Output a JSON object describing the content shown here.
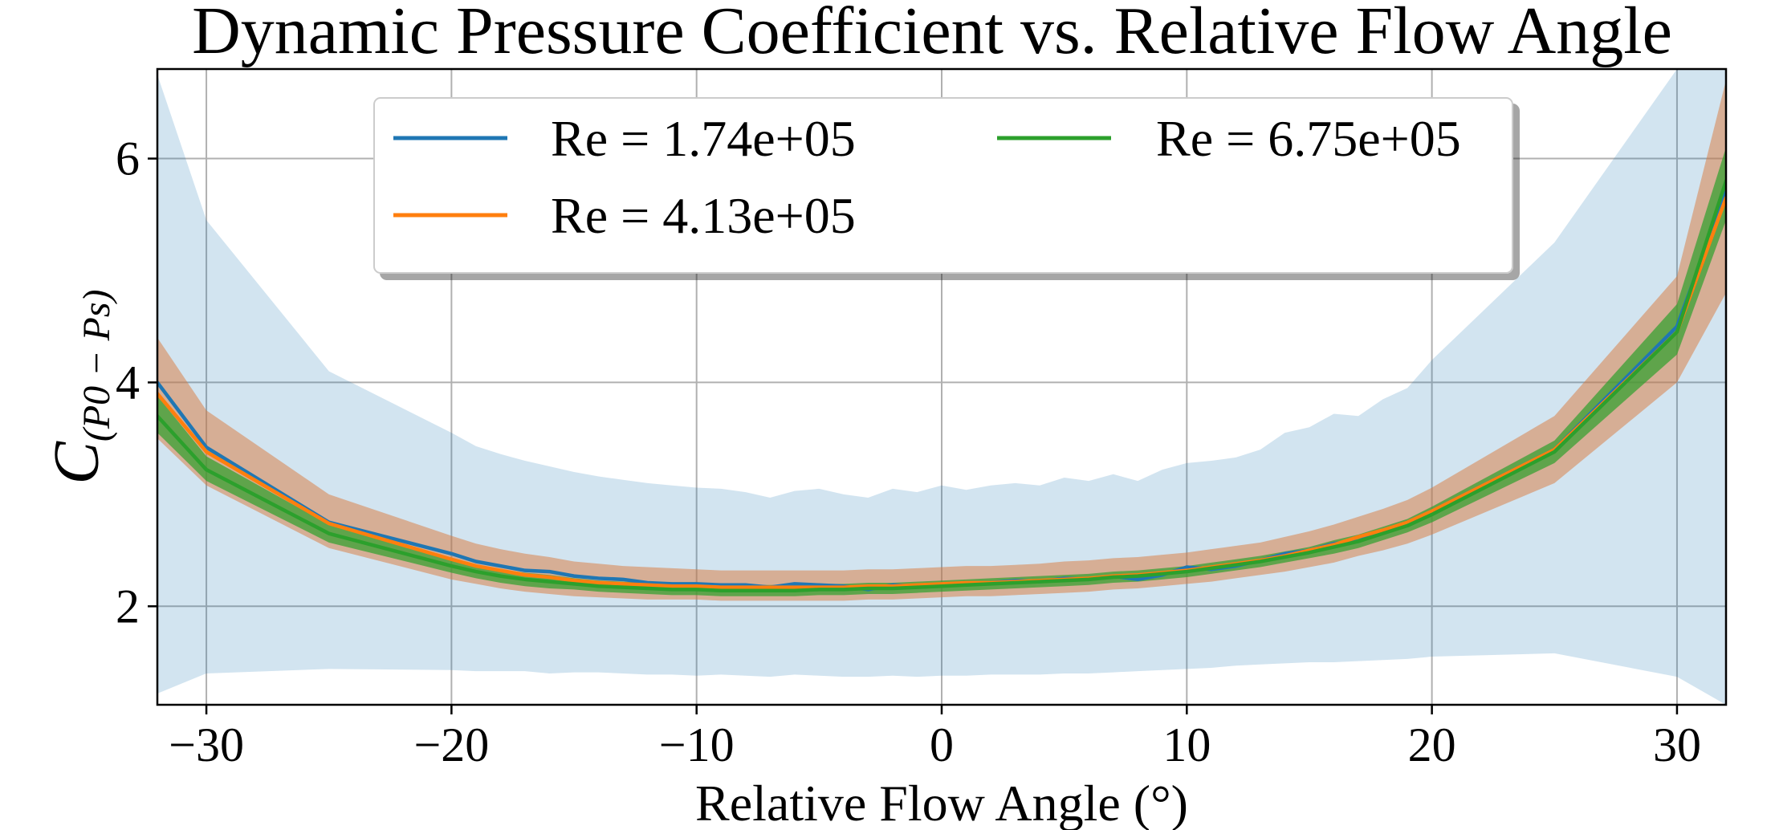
{
  "chart_data": {
    "type": "line",
    "title": "Dynamic Pressure Coefficient vs. Relative Flow Angle",
    "xlabel": "Relative Flow Angle (°)",
    "ylabel": "C(P0 − Ps)",
    "ylabel_main": "C",
    "ylabel_sub": "(P0 − Ps)",
    "xlim": [
      -32,
      32
    ],
    "ylim": [
      1.12,
      6.8
    ],
    "xticks": [
      -30,
      -20,
      -10,
      0,
      10,
      20,
      30
    ],
    "xtick_labels": [
      "−30",
      "−20",
      "−10",
      "0",
      "10",
      "20",
      "30"
    ],
    "yticks": [
      2,
      4,
      6
    ],
    "ytick_labels": [
      "2",
      "4",
      "6"
    ],
    "grid": true,
    "legend_position": "top-center",
    "legend_columns": 2,
    "series": [
      {
        "name": "Re = 1.74e+05",
        "color": "#1f77b4",
        "band_color": "#1f77b4",
        "band_opacity": 0.2,
        "x": [
          -32,
          -30,
          -25,
          -20,
          -19,
          -18,
          -17,
          -16,
          -15,
          -14,
          -13,
          -12,
          -11,
          -10,
          -9,
          -8,
          -7,
          -6,
          -5,
          -4,
          -3,
          -2,
          -1,
          0,
          1,
          2,
          3,
          4,
          5,
          6,
          7,
          8,
          9,
          10,
          11,
          12,
          13,
          14,
          15,
          16,
          17,
          18,
          19,
          20,
          25,
          30,
          32
        ],
        "y": [
          4.0,
          3.42,
          2.75,
          2.47,
          2.4,
          2.36,
          2.32,
          2.31,
          2.27,
          2.25,
          2.24,
          2.21,
          2.2,
          2.2,
          2.19,
          2.19,
          2.17,
          2.2,
          2.19,
          2.18,
          2.15,
          2.19,
          2.18,
          2.2,
          2.19,
          2.21,
          2.23,
          2.22,
          2.25,
          2.24,
          2.27,
          2.24,
          2.28,
          2.35,
          2.33,
          2.36,
          2.41,
          2.47,
          2.5,
          2.56,
          2.58,
          2.68,
          2.75,
          2.85,
          3.4,
          4.5,
          5.7
        ],
        "lower": [
          1.22,
          1.4,
          1.44,
          1.43,
          1.42,
          1.42,
          1.42,
          1.4,
          1.41,
          1.41,
          1.4,
          1.39,
          1.39,
          1.38,
          1.39,
          1.38,
          1.37,
          1.39,
          1.38,
          1.37,
          1.37,
          1.38,
          1.37,
          1.38,
          1.38,
          1.39,
          1.39,
          1.39,
          1.4,
          1.4,
          1.41,
          1.42,
          1.43,
          1.44,
          1.45,
          1.47,
          1.48,
          1.49,
          1.5,
          1.5,
          1.51,
          1.52,
          1.53,
          1.55,
          1.58,
          1.37,
          1.12
        ],
        "upper": [
          6.75,
          5.45,
          4.1,
          3.55,
          3.43,
          3.36,
          3.3,
          3.25,
          3.2,
          3.16,
          3.13,
          3.1,
          3.08,
          3.06,
          3.05,
          3.02,
          2.97,
          3.03,
          3.05,
          3.0,
          2.97,
          3.05,
          3.02,
          3.08,
          3.04,
          3.08,
          3.1,
          3.08,
          3.15,
          3.12,
          3.18,
          3.12,
          3.22,
          3.28,
          3.3,
          3.33,
          3.4,
          3.55,
          3.6,
          3.72,
          3.7,
          3.85,
          3.95,
          4.2,
          5.25,
          6.8,
          6.8
        ]
      },
      {
        "name": "Re = 4.13e+05",
        "color": "#ff7f0e",
        "band_color": "#d9773a",
        "band_opacity": 0.5,
        "x": [
          -32,
          -30,
          -25,
          -20,
          -19,
          -18,
          -17,
          -16,
          -15,
          -14,
          -13,
          -12,
          -11,
          -10,
          -9,
          -8,
          -7,
          -6,
          -5,
          -4,
          -3,
          -2,
          -1,
          0,
          1,
          2,
          3,
          4,
          5,
          6,
          7,
          8,
          9,
          10,
          11,
          12,
          13,
          14,
          15,
          16,
          17,
          18,
          19,
          20,
          25,
          30,
          32
        ],
        "y": [
          3.9,
          3.38,
          2.74,
          2.42,
          2.36,
          2.32,
          2.28,
          2.26,
          2.23,
          2.21,
          2.2,
          2.19,
          2.18,
          2.18,
          2.17,
          2.17,
          2.17,
          2.17,
          2.17,
          2.17,
          2.18,
          2.18,
          2.19,
          2.2,
          2.21,
          2.21,
          2.22,
          2.23,
          2.24,
          2.25,
          2.27,
          2.28,
          2.3,
          2.32,
          2.35,
          2.38,
          2.41,
          2.45,
          2.5,
          2.55,
          2.62,
          2.68,
          2.75,
          2.85,
          3.4,
          4.45,
          5.65
        ],
        "lower": [
          3.5,
          3.08,
          2.52,
          2.24,
          2.2,
          2.16,
          2.13,
          2.11,
          2.09,
          2.08,
          2.07,
          2.06,
          2.06,
          2.06,
          2.05,
          2.05,
          2.05,
          2.05,
          2.05,
          2.05,
          2.06,
          2.06,
          2.07,
          2.08,
          2.09,
          2.09,
          2.1,
          2.11,
          2.12,
          2.13,
          2.15,
          2.16,
          2.18,
          2.2,
          2.22,
          2.25,
          2.28,
          2.31,
          2.35,
          2.39,
          2.45,
          2.5,
          2.56,
          2.64,
          3.1,
          4.0,
          4.8
        ],
        "upper": [
          4.4,
          3.75,
          3.0,
          2.63,
          2.56,
          2.51,
          2.47,
          2.44,
          2.4,
          2.38,
          2.36,
          2.35,
          2.34,
          2.33,
          2.32,
          2.32,
          2.32,
          2.32,
          2.32,
          2.32,
          2.33,
          2.33,
          2.34,
          2.35,
          2.36,
          2.36,
          2.37,
          2.38,
          2.4,
          2.41,
          2.43,
          2.44,
          2.46,
          2.48,
          2.51,
          2.54,
          2.57,
          2.62,
          2.67,
          2.73,
          2.8,
          2.87,
          2.95,
          3.06,
          3.7,
          4.95,
          6.7
        ]
      },
      {
        "name": "Re = 6.75e+05",
        "color": "#2ca02c",
        "band_color": "#2ca02c",
        "band_opacity": 0.7,
        "x": [
          -32,
          -30,
          -25,
          -20,
          -19,
          -18,
          -17,
          -16,
          -15,
          -14,
          -13,
          -12,
          -11,
          -10,
          -9,
          -8,
          -7,
          -6,
          -5,
          -4,
          -3,
          -2,
          -1,
          0,
          1,
          2,
          3,
          4,
          5,
          6,
          7,
          8,
          9,
          10,
          11,
          12,
          13,
          14,
          15,
          16,
          17,
          18,
          19,
          20,
          25,
          30,
          32
        ],
        "y": [
          3.7,
          3.22,
          2.65,
          2.36,
          2.31,
          2.27,
          2.24,
          2.22,
          2.2,
          2.18,
          2.17,
          2.16,
          2.15,
          2.15,
          2.14,
          2.14,
          2.14,
          2.14,
          2.15,
          2.15,
          2.16,
          2.16,
          2.17,
          2.18,
          2.19,
          2.2,
          2.21,
          2.22,
          2.23,
          2.24,
          2.26,
          2.27,
          2.29,
          2.31,
          2.34,
          2.37,
          2.4,
          2.44,
          2.48,
          2.53,
          2.58,
          2.65,
          2.72,
          2.82,
          3.38,
          4.45,
          5.8
        ],
        "lower": [
          3.55,
          3.12,
          2.57,
          2.3,
          2.25,
          2.21,
          2.18,
          2.16,
          2.15,
          2.13,
          2.12,
          2.11,
          2.1,
          2.1,
          2.09,
          2.09,
          2.09,
          2.09,
          2.1,
          2.1,
          2.11,
          2.11,
          2.12,
          2.13,
          2.14,
          2.15,
          2.16,
          2.17,
          2.18,
          2.19,
          2.21,
          2.22,
          2.24,
          2.26,
          2.29,
          2.32,
          2.35,
          2.39,
          2.43,
          2.47,
          2.52,
          2.59,
          2.66,
          2.75,
          3.28,
          4.25,
          5.45
        ],
        "upper": [
          3.88,
          3.34,
          2.73,
          2.42,
          2.37,
          2.33,
          2.3,
          2.28,
          2.25,
          2.23,
          2.22,
          2.21,
          2.2,
          2.2,
          2.19,
          2.19,
          2.19,
          2.19,
          2.2,
          2.2,
          2.21,
          2.21,
          2.22,
          2.23,
          2.24,
          2.25,
          2.26,
          2.27,
          2.28,
          2.29,
          2.31,
          2.32,
          2.34,
          2.36,
          2.39,
          2.42,
          2.45,
          2.49,
          2.53,
          2.59,
          2.64,
          2.71,
          2.78,
          2.89,
          3.48,
          4.7,
          6.1
        ]
      }
    ]
  }
}
